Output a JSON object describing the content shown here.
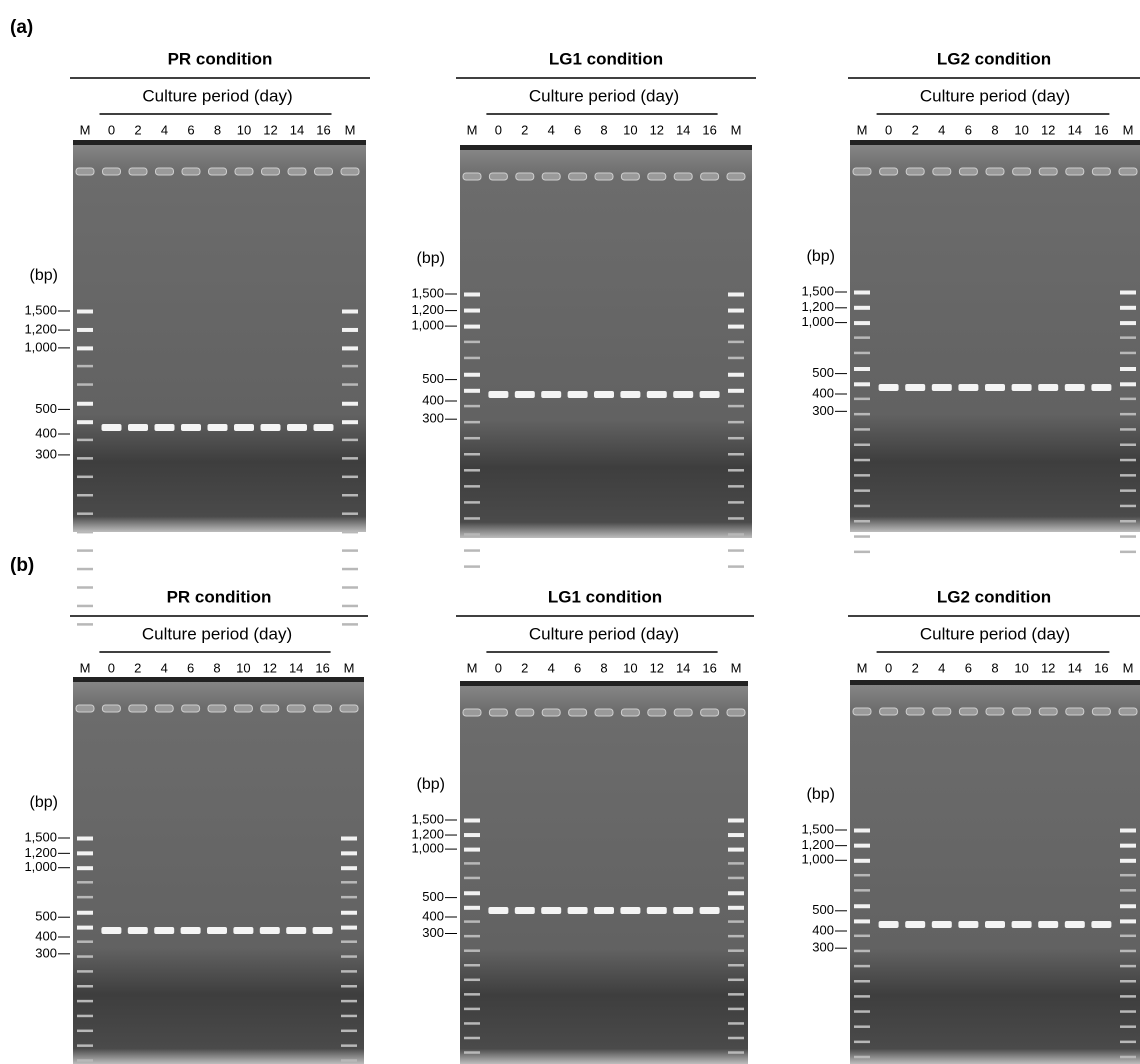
{
  "rows": [
    {
      "label": "(a)",
      "gels": [
        {
          "title": "PR condition",
          "period": "Culture period (day)",
          "lanes": [
            "M",
            "0",
            "2",
            "4",
            "6",
            "8",
            "10",
            "12",
            "14",
            "16",
            "M"
          ],
          "unit": "(bp)",
          "markers": [
            "1,500",
            "1,200",
            "1,000",
            "500",
            "400",
            "300"
          ]
        },
        {
          "title": "LG1 condition",
          "period": "Culture period (day)",
          "lanes": [
            "M",
            "0",
            "2",
            "4",
            "6",
            "8",
            "10",
            "12",
            "14",
            "16",
            "M"
          ],
          "unit": "(bp)",
          "markers": [
            "1,500",
            "1,200",
            "1,000",
            "500",
            "400",
            "300"
          ]
        },
        {
          "title": "LG2 condition",
          "period": "Culture period (day)",
          "lanes": [
            "M",
            "0",
            "2",
            "4",
            "6",
            "8",
            "10",
            "12",
            "14",
            "16",
            "M"
          ],
          "unit": "(bp)",
          "markers": [
            "1,500",
            "1,200",
            "1,000",
            "500",
            "400",
            "300"
          ]
        }
      ]
    },
    {
      "label": "(b)",
      "gels": [
        {
          "title": "PR condition",
          "period": "Culture period (day)",
          "lanes": [
            "M",
            "0",
            "2",
            "4",
            "6",
            "8",
            "10",
            "12",
            "14",
            "16",
            "M"
          ],
          "unit": "(bp)",
          "markers": [
            "1,500",
            "1,200",
            "1,000",
            "500",
            "400",
            "300"
          ]
        },
        {
          "title": "LG1 condition",
          "period": "Culture period (day)",
          "lanes": [
            "M",
            "0",
            "2",
            "4",
            "6",
            "8",
            "10",
            "12",
            "14",
            "16",
            "M"
          ],
          "unit": "(bp)",
          "markers": [
            "1,500",
            "1,200",
            "1,000",
            "500",
            "400",
            "300"
          ]
        },
        {
          "title": "LG2 condition",
          "period": "Culture period (day)",
          "lanes": [
            "M",
            "0",
            "2",
            "4",
            "6",
            "8",
            "10",
            "12",
            "14",
            "16",
            "M"
          ],
          "unit": "(bp)",
          "markers": [
            "1,500",
            "1,200",
            "1,000",
            "500",
            "400",
            "300"
          ]
        }
      ]
    }
  ]
}
